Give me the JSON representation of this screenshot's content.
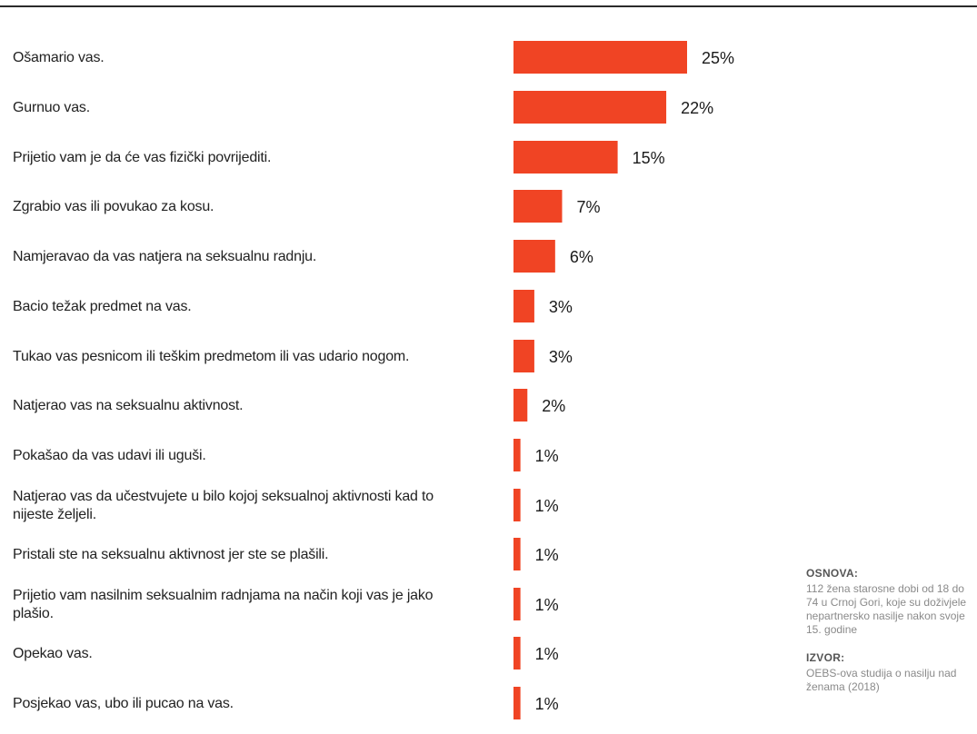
{
  "chart_data": {
    "type": "bar",
    "orientation": "horizontal",
    "categories": [
      "Ošamario vas.",
      "Gurnuo vas.",
      "Prijetio vam je da će vas fizički povrijediti.",
      "Zgrabio vas ili povukao za kosu.",
      "Namjeravao da vas natjera na seksualnu radnju.",
      "Bacio težak predmet na vas.",
      "Tukao vas pesnicom ili teškim predmetom ili vas udario nogom.",
      "Natjerao vas na seksualnu aktivnost.",
      "Pokašao da vas udavi ili uguši.",
      "Natjerao vas da učestvujete u bilo kojoj seksualnoj aktivnosti kad to nijeste željeli.",
      "Pristali ste na seksualnu aktivnost jer ste se plašili.",
      "Prijetio vam nasilnim seksualnim radnjama na način koji vas je jako plašio.",
      "Opekao vas.",
      "Posjekao vas, ubo ili pucao na vas."
    ],
    "values": [
      25,
      22,
      15,
      7,
      6,
      3,
      3,
      2,
      1,
      1,
      1,
      1,
      1,
      1
    ],
    "value_labels": [
      "25%",
      "22%",
      "15%",
      "7%",
      "6%",
      "3%",
      "3%",
      "2%",
      "1%",
      "1%",
      "1%",
      "1%",
      "1%",
      "1%"
    ],
    "unit": "%",
    "bar_color": "#f04424",
    "xlim": [
      0,
      25
    ],
    "grid": false,
    "legend": "none"
  },
  "notes": {
    "basis_heading": "OSNOVA:",
    "basis_text": "112 žena starosne dobi od 18 do 74 u Crnoj Gori, koje su doživjele nepartnersko nasilje nakon svoje 15. godine",
    "source_heading": "IZVOR:",
    "source_text": "OEBS-ova studija o nasilju nad ženama (2018)"
  }
}
